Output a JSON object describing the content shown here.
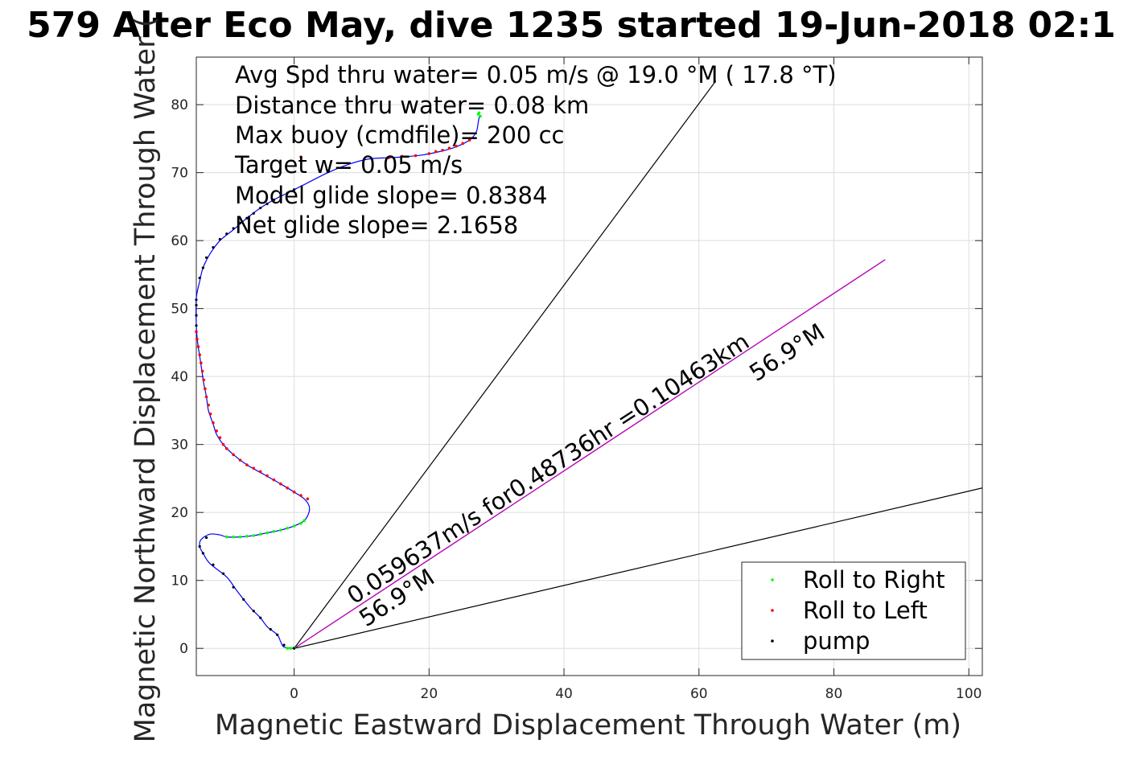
{
  "chart_data": {
    "type": "scatter",
    "title": "579 Alter Eco May, dive 1235 started 19-Jun-2018 02:1",
    "xlabel": "Magnetic Eastward Displacement Through Water (m)",
    "ylabel": "Magnetic Northward Displacement Through Water (",
    "xlim": [
      -14.5,
      102
    ],
    "ylim": [
      -4,
      87
    ],
    "xticks": [
      0,
      20,
      40,
      60,
      80,
      100
    ],
    "yticks": [
      0,
      10,
      20,
      30,
      40,
      50,
      60,
      70,
      80
    ],
    "grid": true,
    "legend_position": "bottom-right",
    "info_lines": [
      "Avg Spd thru water=  0.05 m/s @  19.0 °M ( 17.8 °T)",
      "Distance thru water=  0.08 km",
      "Max buoy (cmdfile)= 200 cc",
      "Target w= 0.05 m/s",
      "Model glide slope= 0.8384",
      "Net glide slope= 2.1658"
    ],
    "annotations": [
      "0.059637m/s for0.48736hr =0.10463km",
      "56.9°M",
      "56.9°M"
    ],
    "legend": [
      {
        "label": "Roll to Right",
        "color": "#00ff00"
      },
      {
        "label": "Roll to Left",
        "color": "#ff0000"
      },
      {
        "label": "pump",
        "color": "#000000"
      }
    ],
    "track_color": "#0000ff",
    "track": [
      [
        0,
        0
      ],
      [
        -1.5,
        0.2
      ],
      [
        -2,
        1
      ],
      [
        -2.5,
        2
      ],
      [
        -4,
        3.2
      ],
      [
        -5,
        4.5
      ],
      [
        -6.5,
        6
      ],
      [
        -8.5,
        8.5
      ],
      [
        -10,
        10.5
      ],
      [
        -12.5,
        12.5
      ],
      [
        -13.5,
        14
      ],
      [
        -14,
        15
      ],
      [
        -13.8,
        16
      ],
      [
        -12.5,
        16.8
      ],
      [
        -11,
        16.7
      ],
      [
        -10,
        16.4
      ],
      [
        -8,
        16.4
      ],
      [
        -6,
        16.6
      ],
      [
        -4,
        17
      ],
      [
        -2,
        17.4
      ],
      [
        0,
        18
      ],
      [
        1.5,
        18.8
      ],
      [
        2.2,
        20
      ],
      [
        2.2,
        21
      ],
      [
        1.5,
        22
      ],
      [
        0,
        23
      ],
      [
        -2,
        24.2
      ],
      [
        -4.5,
        25.6
      ],
      [
        -7,
        27
      ],
      [
        -9,
        28.5
      ],
      [
        -10.5,
        30
      ],
      [
        -11.5,
        31.5
      ],
      [
        -12,
        33
      ],
      [
        -12.7,
        35
      ],
      [
        -13,
        37
      ],
      [
        -13.4,
        39
      ],
      [
        -13.7,
        41
      ],
      [
        -14,
        43
      ],
      [
        -14.3,
        45
      ],
      [
        -14.5,
        47.5
      ],
      [
        -14.5,
        51.5
      ],
      [
        -14,
        54
      ],
      [
        -13.5,
        56
      ],
      [
        -12.5,
        58
      ],
      [
        -11,
        60
      ],
      [
        -9,
        61.6
      ],
      [
        -7,
        63.3
      ],
      [
        -5,
        64.8
      ],
      [
        -3,
        66
      ],
      [
        -1,
        67
      ],
      [
        0,
        67.5
      ],
      [
        2,
        68.5
      ],
      [
        5,
        70
      ],
      [
        8,
        71.2
      ],
      [
        11,
        72
      ],
      [
        14,
        72.2
      ],
      [
        16,
        72.3
      ],
      [
        19,
        72.6
      ],
      [
        22,
        73.2
      ],
      [
        24,
        73.8
      ],
      [
        26,
        74.8
      ],
      [
        27,
        76
      ],
      [
        27.3,
        77.5
      ],
      [
        27.5,
        78.5
      ]
    ],
    "roll_right_points": [
      [
        -1,
        0
      ],
      [
        -0.5,
        0
      ],
      [
        0,
        0.1
      ],
      [
        -10,
        16.4
      ],
      [
        -9,
        16.4
      ],
      [
        -8,
        16.4
      ],
      [
        -7,
        16.5
      ],
      [
        -6,
        16.6
      ],
      [
        -5,
        16.8
      ],
      [
        -4,
        17
      ],
      [
        -3,
        17.2
      ],
      [
        -2,
        17.4
      ],
      [
        -1,
        17.7
      ],
      [
        0,
        18
      ],
      [
        1,
        18.4
      ],
      [
        1.5,
        18.8
      ],
      [
        27.3,
        78.6
      ],
      [
        27.6,
        78.3
      ],
      [
        27.4,
        78.8
      ]
    ],
    "roll_left_points": [
      [
        2,
        22
      ],
      [
        1,
        22.5
      ],
      [
        0,
        23
      ],
      [
        -1,
        23.6
      ],
      [
        -2,
        24.2
      ],
      [
        -3,
        24.8
      ],
      [
        -4,
        25.4
      ],
      [
        -5,
        26
      ],
      [
        -6,
        26.5
      ],
      [
        -7,
        27
      ],
      [
        -8,
        27.7
      ],
      [
        -9,
        28.5
      ],
      [
        -10,
        29.4
      ],
      [
        -10.5,
        30
      ],
      [
        -11,
        31
      ],
      [
        -11.5,
        32
      ],
      [
        -12,
        33.2
      ],
      [
        -12.4,
        34.5
      ],
      [
        -12.7,
        35.8
      ],
      [
        -13,
        37
      ],
      [
        -13.2,
        38.2
      ],
      [
        -13.4,
        39.5
      ],
      [
        -13.6,
        40.8
      ],
      [
        -13.8,
        42
      ],
      [
        -14,
        43.2
      ],
      [
        -14.2,
        44.4
      ],
      [
        -14.4,
        45.5
      ],
      [
        -14.5,
        46.6
      ],
      [
        1,
        72.3
      ],
      [
        14,
        72.2
      ],
      [
        16,
        72.4
      ],
      [
        18,
        72.5
      ],
      [
        20,
        72.8
      ],
      [
        21,
        73.1
      ],
      [
        22,
        73.3
      ],
      [
        23,
        73.6
      ],
      [
        24,
        73.9
      ],
      [
        25,
        74.3
      ],
      [
        26,
        74.8
      ]
    ],
    "pump_points": [
      [
        0,
        0
      ],
      [
        -1.5,
        0.5
      ],
      [
        -2.5,
        2
      ],
      [
        -3.5,
        2.8
      ],
      [
        -5,
        4.5
      ],
      [
        -6,
        5.5
      ],
      [
        -7.5,
        7.2
      ],
      [
        -9,
        9
      ],
      [
        -10.5,
        11
      ],
      [
        -12,
        12.3
      ],
      [
        -13.5,
        14
      ],
      [
        -14,
        15
      ],
      [
        -13,
        16.3
      ],
      [
        -14.5,
        47.5
      ],
      [
        -14.5,
        49
      ],
      [
        -14.5,
        50.5
      ],
      [
        -14.5,
        51.3
      ],
      [
        -14,
        54.5
      ],
      [
        -13.5,
        56
      ],
      [
        -13,
        57.5
      ],
      [
        -12,
        59
      ],
      [
        -11,
        60.2
      ],
      [
        -10,
        61
      ],
      [
        -9,
        61.8
      ],
      [
        -8,
        62.6
      ],
      [
        -7,
        63.3
      ],
      [
        -6,
        64
      ],
      [
        -5,
        64.8
      ],
      [
        -4,
        65.4
      ],
      [
        -3,
        66
      ],
      [
        -2,
        66.5
      ],
      [
        -1,
        67
      ],
      [
        0,
        67.5
      ]
    ],
    "lines": [
      {
        "name": "",
        "color": "#000000",
        "from": [
          0,
          0
        ],
        "to": [
          62.5,
          83.5
        ]
      },
      {
        "name": "",
        "color": "#000000",
        "from": [
          0,
          0
        ],
        "to": [
          102,
          23.6
        ]
      },
      {
        "name": "",
        "color": "#000000",
        "from": [
          0,
          0
        ],
        "to": [
          87.6,
          57.2
        ]
      },
      {
        "name": "",
        "color": "#cc00cc",
        "from": [
          0,
          0
        ],
        "to": [
          87.6,
          57.2
        ]
      }
    ]
  }
}
